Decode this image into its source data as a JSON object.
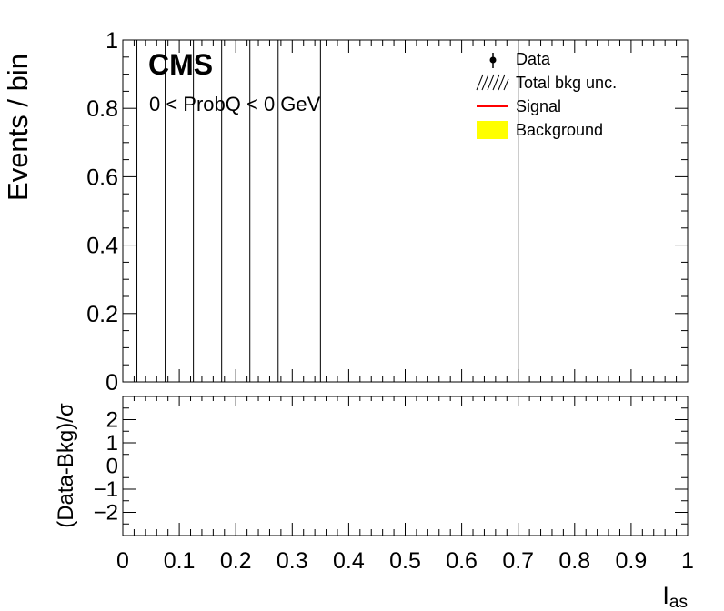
{
  "chart_data": [
    {
      "type": "line",
      "panel": "main",
      "ylabel": "Events / bin",
      "ylim": [
        0,
        1
      ],
      "yticks": [
        "0",
        "0.2",
        "0.4",
        "0.6",
        "0.8",
        "1"
      ],
      "xlim": [
        0,
        1
      ],
      "bin_edges": [
        0.0,
        0.025,
        0.075,
        0.125,
        0.175,
        0.225,
        0.275,
        0.35,
        0.7,
        1.0
      ],
      "series": [
        {
          "name": "Data",
          "values": []
        },
        {
          "name": "Total bkg unc.",
          "values": []
        },
        {
          "name": "Signal",
          "values": []
        },
        {
          "name": "Background",
          "values": []
        }
      ],
      "legend": "top-right",
      "experiment_label": "CMS",
      "annotation": "0 < ProbQ < 0 GeV"
    },
    {
      "type": "line",
      "panel": "ratio",
      "ylabel": "(Data-Bkg)/σ",
      "ylim": [
        -3,
        3
      ],
      "yticks": [
        "−2",
        "−1",
        "0",
        "1",
        "2"
      ],
      "xlabel": "I",
      "xlabel_sub": "as",
      "xlim": [
        0,
        1
      ],
      "xticks": [
        "0",
        "0.1",
        "0.2",
        "0.3",
        "0.4",
        "0.5",
        "0.6",
        "0.7",
        "0.8",
        "0.9",
        "1"
      ],
      "reference_line": 0
    }
  ],
  "colors": {
    "signal": "#ff0000",
    "background": "#ffff00",
    "axis": "#000000",
    "data": "#000000"
  }
}
